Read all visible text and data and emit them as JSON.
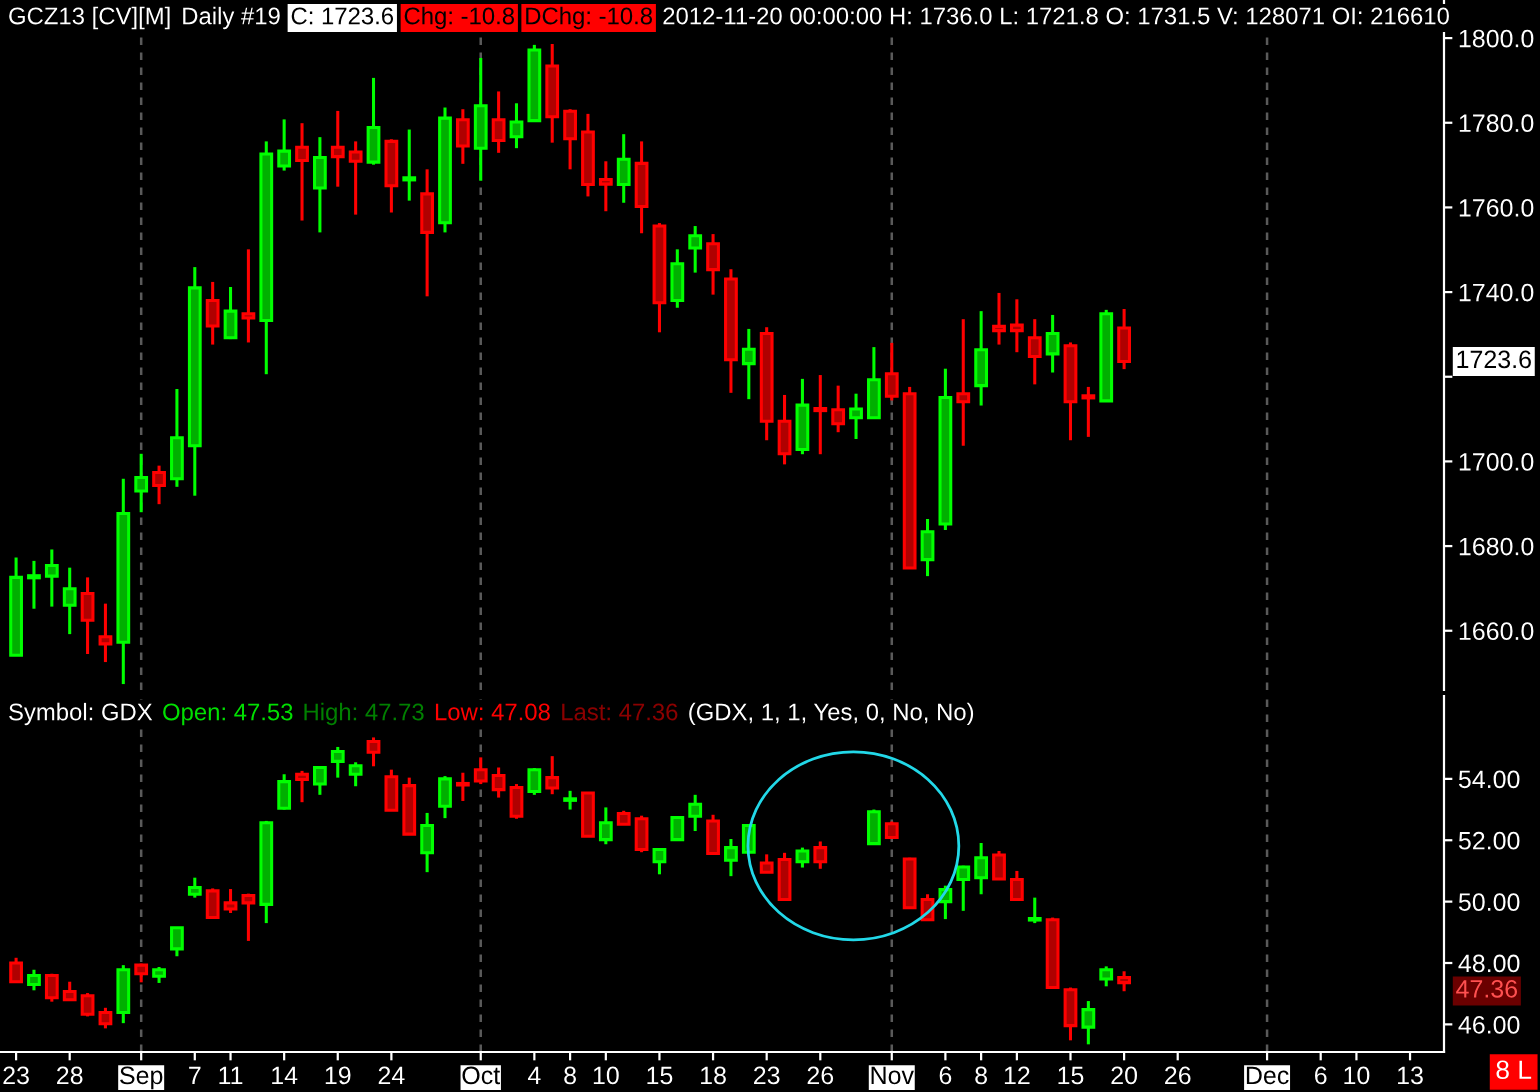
{
  "chart_data": [
    {
      "type": "candlestick",
      "tick_labels": "y",
      "annotations": [
        "GCZ13 [CV][M]",
        "Daily #19",
        "C: 1723.6",
        "Chg: -10.8",
        "DChg: -10.8",
        "2012-11-20 00:00:00 H: 1736.0 L: 1721.8 O: 1731.5 V: 128071 OI: 216610",
        "1723.6"
      ],
      "categories": [
        "23",
        null,
        null,
        "28",
        null,
        null,
        null,
        "Sep",
        null,
        null,
        "7",
        null,
        "11",
        null,
        null,
        "14",
        null,
        null,
        "19",
        null,
        null,
        "24",
        null,
        null,
        null,
        null,
        "Oct",
        null,
        null,
        "4",
        null,
        "8",
        null,
        "10",
        null,
        null,
        "15",
        null,
        null,
        "18",
        null,
        null,
        "23",
        null,
        null,
        "26",
        null,
        null,
        null,
        "Nov",
        null,
        null,
        "6",
        null,
        "8",
        null,
        "12",
        null,
        null,
        "15",
        null,
        null,
        "20",
        null,
        null,
        "26",
        null,
        null,
        null,
        null,
        "Dec",
        null,
        null,
        "6",
        null,
        "10",
        null,
        null,
        "13",
        null
      ],
      "ohlc": [
        [
          1654.2,
          1677.3,
          1654.2,
          1672.6
        ],
        [
          1672.5,
          1676.5,
          1665.2,
          1673.0
        ],
        [
          1672.9,
          1679.2,
          1665.7,
          1675.4
        ],
        [
          1666.0,
          1674.9,
          1659.2,
          1669.9
        ],
        [
          1668.8,
          1672.6,
          1654.5,
          1662.5
        ],
        [
          1658.6,
          1666.4,
          1652.6,
          1656.9
        ],
        [
          1657.3,
          1695.9,
          1647.4,
          1687.7
        ],
        [
          1693.0,
          1701.8,
          1688.0,
          1696.2
        ],
        [
          1697.4,
          1699.0,
          1689.9,
          1694.3
        ],
        [
          1695.9,
          1717.1,
          1694.0,
          1705.6
        ],
        [
          1703.7,
          1745.9,
          1691.9,
          1741.0
        ],
        [
          1738.0,
          1742.4,
          1727.6,
          1732.0
        ],
        [
          1729.2,
          1741.2,
          1728.9,
          1735.5
        ],
        [
          1734.9,
          1750.1,
          1728.1,
          1733.9
        ],
        [
          1733.3,
          1775.6,
          1720.6,
          1772.6
        ],
        [
          1769.8,
          1780.8,
          1768.7,
          1773.3
        ],
        [
          1774.2,
          1779.9,
          1756.9,
          1771.1
        ],
        [
          1764.6,
          1776.6,
          1754.1,
          1771.8
        ],
        [
          1774.2,
          1782.8,
          1764.9,
          1772.0
        ],
        [
          1773.1,
          1775.6,
          1758.3,
          1770.9
        ],
        [
          1770.7,
          1790.6,
          1770.1,
          1778.9
        ],
        [
          1775.6,
          1776.1,
          1758.8,
          1765.1
        ],
        [
          1766.5,
          1778.4,
          1761.6,
          1767.0
        ],
        [
          1763.2,
          1769.0,
          1739.0,
          1754.1
        ],
        [
          1756.4,
          1783.6,
          1754.1,
          1781.1
        ],
        [
          1780.7,
          1783.2,
          1770.3,
          1774.5
        ],
        [
          1774.0,
          1795.3,
          1766.3,
          1784.0
        ],
        [
          1780.7,
          1787.4,
          1772.9,
          1775.8
        ],
        [
          1776.7,
          1784.6,
          1774.0,
          1780.2
        ],
        [
          1780.5,
          1798.4,
          1780.5,
          1797.2
        ],
        [
          1793.4,
          1798.6,
          1775.3,
          1781.4
        ],
        [
          1782.7,
          1783.2,
          1769.0,
          1776.2
        ],
        [
          1777.8,
          1782.1,
          1762.6,
          1765.4
        ],
        [
          1766.6,
          1770.9,
          1759.1,
          1765.5
        ],
        [
          1765.4,
          1777.3,
          1761.1,
          1771.4
        ],
        [
          1770.4,
          1775.6,
          1753.9,
          1760.2
        ],
        [
          1755.6,
          1756.3,
          1730.5,
          1737.5
        ],
        [
          1738.0,
          1750.1,
          1736.3,
          1746.7
        ],
        [
          1750.4,
          1755.6,
          1744.6,
          1753.3
        ],
        [
          1751.4,
          1753.7,
          1739.4,
          1745.3
        ],
        [
          1743.1,
          1745.4,
          1716.2,
          1724.0
        ],
        [
          1723.1,
          1731.3,
          1714.7,
          1726.5
        ],
        [
          1730.2,
          1731.7,
          1705.0,
          1709.5
        ],
        [
          1709.5,
          1715.7,
          1699.3,
          1701.8
        ],
        [
          1702.8,
          1719.5,
          1701.7,
          1713.3
        ],
        [
          1712.5,
          1720.4,
          1701.7,
          1712.0
        ],
        [
          1712.2,
          1717.9,
          1706.9,
          1708.9
        ],
        [
          1710.3,
          1716.0,
          1705.3,
          1712.4
        ],
        [
          1710.3,
          1727.0,
          1710.3,
          1719.3
        ],
        [
          1720.7,
          1728.0,
          1714.4,
          1715.4
        ],
        [
          1716.0,
          1717.6,
          1674.8,
          1674.8
        ],
        [
          1676.8,
          1686.4,
          1672.9,
          1683.4
        ],
        [
          1685.2,
          1721.9,
          1683.8,
          1715.1
        ],
        [
          1716.0,
          1733.6,
          1703.7,
          1714.1
        ],
        [
          1717.9,
          1735.5,
          1713.2,
          1726.4
        ],
        [
          1731.9,
          1739.8,
          1727.6,
          1730.9
        ],
        [
          1732.2,
          1738.3,
          1725.8,
          1730.9
        ],
        [
          1729.2,
          1733.6,
          1718.2,
          1724.8
        ],
        [
          1725.4,
          1734.6,
          1721.0,
          1730.2
        ],
        [
          1727.3,
          1728.1,
          1705.0,
          1714.1
        ],
        [
          1715.5,
          1717.6,
          1705.8,
          1715.0
        ],
        [
          1714.3,
          1735.8,
          1714.3,
          1734.9
        ],
        [
          1731.5,
          1736.0,
          1721.8,
          1723.6
        ],
        null,
        null,
        null,
        null,
        null,
        null,
        null,
        null,
        null,
        null,
        null,
        null,
        null,
        null,
        null,
        null,
        null
      ],
      "ylim": [
        1646,
        1809
      ],
      "yticks": [
        {
          "value": 1660,
          "label": "1660.0"
        },
        {
          "value": 1680,
          "label": "1680.0"
        },
        {
          "value": 1700,
          "label": "1700.0"
        },
        {
          "value": 1720,
          "label": null
        },
        {
          "value": 1740,
          "label": "1740.0"
        },
        {
          "value": 1760,
          "label": "1760.0"
        },
        {
          "value": 1780,
          "label": "1780.0"
        },
        {
          "value": 1800,
          "label": "1800.0"
        }
      ],
      "ref_lines": [
        {
          "axis": "x",
          "value": "Sep",
          "line_style": "dashed",
          "color": "#5a5a5a"
        },
        {
          "axis": "x",
          "value": "Oct",
          "line_style": "dashed",
          "color": "#5a5a5a"
        },
        {
          "axis": "x",
          "value": "Nov",
          "line_style": "dashed",
          "color": "#5a5a5a"
        },
        {
          "axis": "x",
          "value": "Dec",
          "line_style": "dashed",
          "color": "#5a5a5a"
        }
      ]
    },
    {
      "type": "candlestick",
      "annotations": [
        "Symbol: GDX",
        "Open: 47.53",
        "High: 47.73",
        "Low: 47.08",
        "Last: 47.36",
        "(GDX, 1, 1, Yes, 0, No, No)",
        "47.36",
        "8 L"
      ],
      "categories": [
        "23",
        null,
        null,
        "28",
        null,
        null,
        null,
        "Sep",
        null,
        null,
        "7",
        null,
        "11",
        null,
        null,
        "14",
        null,
        null,
        "19",
        null,
        null,
        "24",
        null,
        null,
        null,
        null,
        "Oct",
        null,
        null,
        "4",
        null,
        "8",
        null,
        "10",
        null,
        null,
        "15",
        null,
        null,
        "18",
        null,
        null,
        "23",
        null,
        null,
        "26",
        null,
        null,
        null,
        "Nov",
        null,
        null,
        "6",
        null,
        "8",
        null,
        "12",
        null,
        null,
        "15",
        null,
        null,
        "20",
        null,
        null,
        "26",
        null,
        null,
        null,
        null,
        "Dec",
        null,
        null,
        "6",
        null,
        "10",
        null,
        null,
        "13",
        null
      ],
      "ohlc": [
        [
          48.0,
          48.17,
          47.35,
          47.39
        ],
        [
          47.3,
          47.78,
          47.11,
          47.59
        ],
        [
          47.59,
          47.65,
          46.74,
          46.87
        ],
        [
          47.07,
          47.39,
          46.8,
          46.8
        ],
        [
          46.93,
          47.02,
          46.26,
          46.33
        ],
        [
          46.39,
          46.54,
          45.87,
          46.02
        ],
        [
          46.39,
          47.93,
          46.04,
          47.78
        ],
        [
          47.93,
          47.98,
          47.37,
          47.65
        ],
        [
          47.57,
          47.87,
          47.35,
          47.78
        ],
        [
          48.46,
          49.15,
          48.22,
          49.15
        ],
        [
          50.24,
          50.78,
          50.13,
          50.46
        ],
        [
          50.35,
          50.43,
          49.48,
          49.48
        ],
        [
          49.96,
          50.41,
          49.63,
          49.76
        ],
        [
          50.2,
          50.26,
          48.72,
          49.96
        ],
        [
          49.91,
          52.63,
          49.3,
          52.57
        ],
        [
          53.04,
          54.15,
          53.0,
          53.91
        ],
        [
          54.15,
          54.26,
          53.24,
          53.98
        ],
        [
          53.83,
          54.37,
          53.48,
          54.37
        ],
        [
          54.57,
          55.04,
          54.04,
          54.89
        ],
        [
          54.15,
          54.54,
          53.76,
          54.43
        ],
        [
          55.22,
          55.35,
          54.41,
          54.87
        ],
        [
          54.07,
          54.3,
          52.98,
          52.98
        ],
        [
          53.78,
          54.04,
          52.2,
          52.2
        ],
        [
          51.59,
          52.89,
          50.96,
          52.48
        ],
        [
          53.11,
          54.09,
          52.72,
          54.0
        ],
        [
          53.85,
          54.2,
          53.28,
          53.8
        ],
        [
          54.3,
          54.7,
          53.83,
          53.93
        ],
        [
          54.11,
          54.37,
          53.39,
          53.65
        ],
        [
          53.72,
          53.83,
          52.7,
          52.78
        ],
        [
          53.59,
          54.35,
          53.48,
          54.3
        ],
        [
          54.04,
          54.74,
          53.5,
          53.7
        ],
        [
          53.3,
          53.61,
          53.0,
          53.35
        ],
        [
          53.54,
          53.54,
          52.13,
          52.13
        ],
        [
          52.02,
          53.07,
          51.87,
          52.57
        ],
        [
          52.87,
          52.96,
          52.52,
          52.52
        ],
        [
          52.7,
          52.8,
          51.61,
          51.7
        ],
        [
          51.3,
          51.7,
          50.89,
          51.7
        ],
        [
          52.02,
          52.74,
          52.0,
          52.74
        ],
        [
          52.78,
          53.48,
          52.3,
          53.17
        ],
        [
          52.63,
          52.83,
          51.57,
          51.57
        ],
        [
          51.35,
          52.04,
          50.83,
          51.76
        ],
        [
          51.61,
          52.52,
          51.61,
          52.48
        ],
        [
          51.26,
          51.54,
          50.96,
          50.96
        ],
        [
          51.37,
          51.59,
          50.07,
          50.07
        ],
        [
          51.3,
          51.76,
          51.11,
          51.65
        ],
        [
          51.76,
          51.96,
          51.07,
          51.3
        ],
        null,
        null,
        [
          51.89,
          53.0,
          51.89,
          52.93
        ],
        [
          52.54,
          52.61,
          52.09,
          52.09
        ],
        [
          51.39,
          51.43,
          49.8,
          49.8
        ],
        [
          50.07,
          50.24,
          49.41,
          49.41
        ],
        [
          50.0,
          50.52,
          49.43,
          50.39
        ],
        [
          50.72,
          51.17,
          49.7,
          51.13
        ],
        [
          50.78,
          51.91,
          50.24,
          51.43
        ],
        [
          51.52,
          51.65,
          50.74,
          50.74
        ],
        [
          50.72,
          51.0,
          50.07,
          50.07
        ],
        [
          49.4,
          50.13,
          49.3,
          49.45
        ],
        [
          49.41,
          49.48,
          47.2,
          47.2
        ],
        [
          47.13,
          47.2,
          45.48,
          45.96
        ],
        [
          45.91,
          46.76,
          45.35,
          46.48
        ],
        [
          47.48,
          47.89,
          47.24,
          47.78
        ],
        [
          47.53,
          47.73,
          47.08,
          47.36
        ],
        null,
        null,
        null,
        null,
        null,
        null,
        null,
        null,
        null,
        null,
        null,
        null,
        null,
        null,
        null,
        null,
        null
      ],
      "ylim": [
        45.1,
        56.7
      ],
      "yticks": [
        {
          "value": 46,
          "label": "46.00"
        },
        {
          "value": 48,
          "label": "48.00"
        },
        {
          "value": 50,
          "label": "50.00"
        },
        {
          "value": 52,
          "label": "52.00"
        },
        {
          "value": 54,
          "label": "54.00"
        }
      ],
      "ref_lines": [
        {
          "axis": "x",
          "value": "Sep",
          "line_style": "dashed",
          "color": "#5a5a5a"
        },
        {
          "axis": "x",
          "value": "Oct",
          "line_style": "dashed",
          "color": "#5a5a5a"
        },
        {
          "axis": "x",
          "value": "Nov",
          "line_style": "dashed",
          "color": "#5a5a5a"
        },
        {
          "axis": "x",
          "value": "Dec",
          "line_style": "dashed",
          "color": "#5a5a5a"
        }
      ]
    }
  ]
}
